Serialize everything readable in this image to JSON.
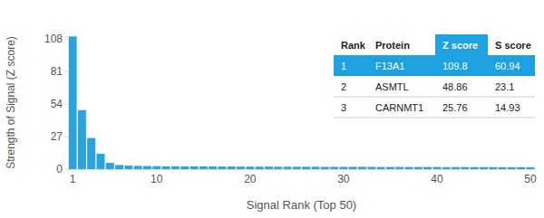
{
  "chart_data": {
    "type": "bar",
    "x_label": "Signal Rank (Top 50)",
    "y_label": "Strength of Signal (Z score)",
    "categories": [
      "1",
      null,
      null,
      null,
      null,
      null,
      null,
      null,
      null,
      "10",
      null,
      null,
      null,
      null,
      null,
      null,
      null,
      null,
      null,
      "20",
      null,
      null,
      null,
      null,
      null,
      null,
      null,
      null,
      null,
      "30",
      null,
      null,
      null,
      null,
      null,
      null,
      null,
      null,
      null,
      "40",
      null,
      null,
      null,
      null,
      null,
      null,
      null,
      null,
      null,
      "50"
    ],
    "values": [
      109.8,
      48.86,
      25.76,
      12.8,
      5.2,
      3.4,
      2.9,
      2.7,
      2.6,
      2.5,
      2.4,
      2.4,
      2.3,
      2.3,
      2.3,
      2.2,
      2.2,
      2.2,
      2.1,
      2.1,
      2.1,
      2.1,
      2.0,
      2.0,
      2.0,
      2.0,
      2.0,
      1.9,
      1.9,
      1.9,
      1.9,
      1.9,
      1.9,
      1.8,
      1.8,
      1.8,
      1.8,
      1.8,
      1.8,
      1.8,
      1.7,
      1.7,
      1.7,
      1.7,
      1.7,
      1.7,
      1.6,
      1.6,
      1.6,
      1.6
    ],
    "color": "#2ba4dd",
    "ylim": [
      0,
      110
    ],
    "yticks": [
      0,
      27,
      54,
      81,
      108
    ],
    "grid": false
  },
  "table": {
    "columns": [
      "Rank",
      "Protein",
      "Z score",
      "S score"
    ],
    "rows": [
      [
        1,
        "F13A1",
        109.8,
        60.94
      ],
      [
        2,
        "ASMTL",
        48.86,
        23.1
      ],
      [
        3,
        "CARNMT1",
        25.76,
        14.93
      ]
    ]
  }
}
